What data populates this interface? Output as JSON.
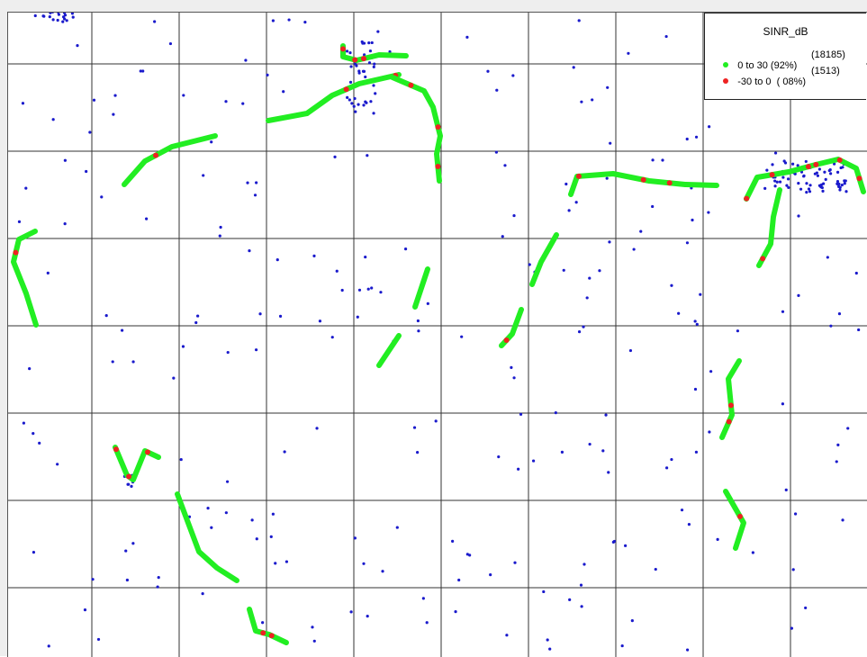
{
  "legend": {
    "title": "SINR_dB",
    "items": [
      {
        "label": "0 to 30 (92%)",
        "count": "(18185)",
        "color": "#22ee22"
      },
      {
        "label": "-30 to 0  ( 08%)",
        "count": "(1513)",
        "color": "#ee2222"
      }
    ]
  },
  "colors": {
    "good": "#22ee22",
    "bad": "#ee2222",
    "site": "#1a1acc",
    "grid": "#333333",
    "frame": "#eeeeee"
  },
  "map": {
    "grid": "on",
    "layer": "SINR_dB drive test",
    "site-icon": "blue-dot-icon"
  }
}
